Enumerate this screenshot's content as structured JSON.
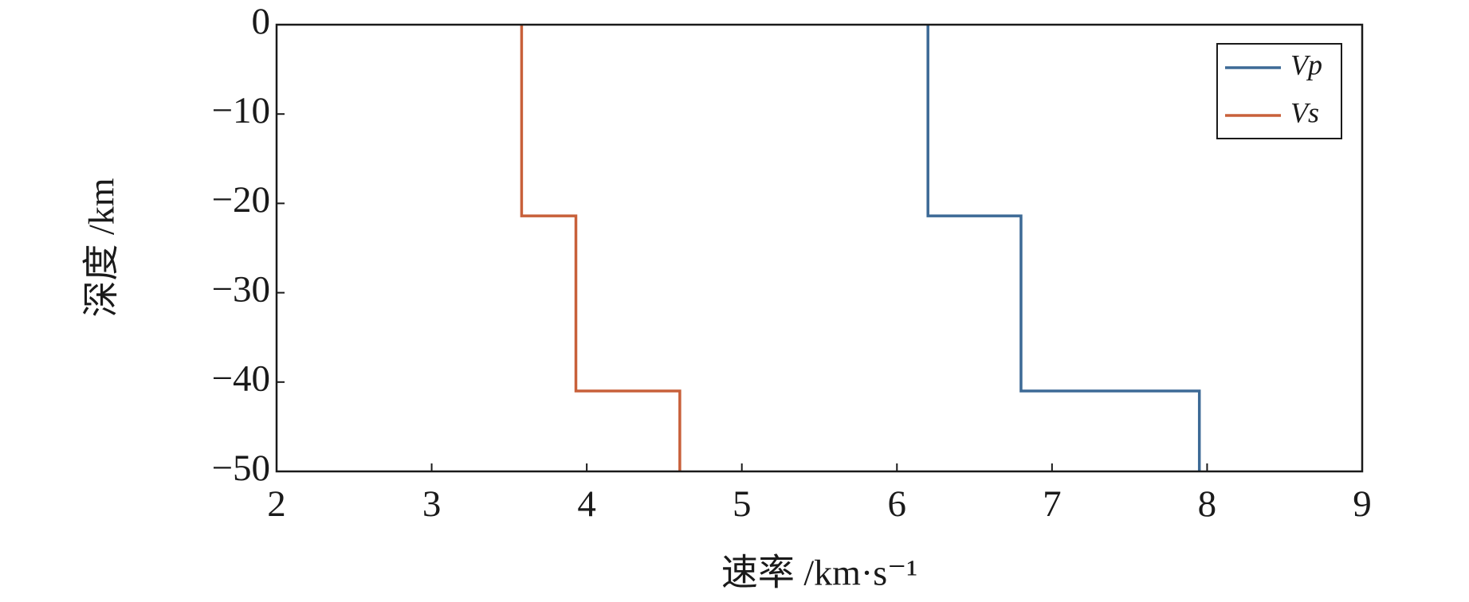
{
  "chart_data": {
    "type": "line",
    "x_label": "速率 /km·s⁻¹",
    "y_label": "深度 /km",
    "xlim": [
      2,
      9
    ],
    "xticks": [
      2,
      3,
      4,
      5,
      6,
      7,
      8,
      9
    ],
    "ylim": [
      -50,
      0
    ],
    "yticks": [
      0,
      {
        "value": -10,
        "label": "−10"
      },
      {
        "value": -20,
        "label": "−20"
      },
      {
        "value": -30,
        "label": "−30"
      },
      {
        "value": -40,
        "label": "−40"
      },
      {
        "value": -50,
        "label": "−50"
      }
    ],
    "grid": false,
    "legend": "upper right",
    "series": [
      {
        "name": "Vp",
        "color": "#3d6a96",
        "x": [
          6.2,
          6.2,
          6.8,
          6.8,
          7.95,
          7.95
        ],
        "values": [
          0,
          -21.4,
          -21.4,
          -41,
          -41,
          -50
        ]
      },
      {
        "name": "Vs",
        "color": "#c8603a",
        "x": [
          3.58,
          3.58,
          3.93,
          3.93,
          4.6,
          4.6
        ],
        "values": [
          0,
          -21.4,
          -21.4,
          -41,
          -41,
          -50
        ]
      }
    ]
  }
}
